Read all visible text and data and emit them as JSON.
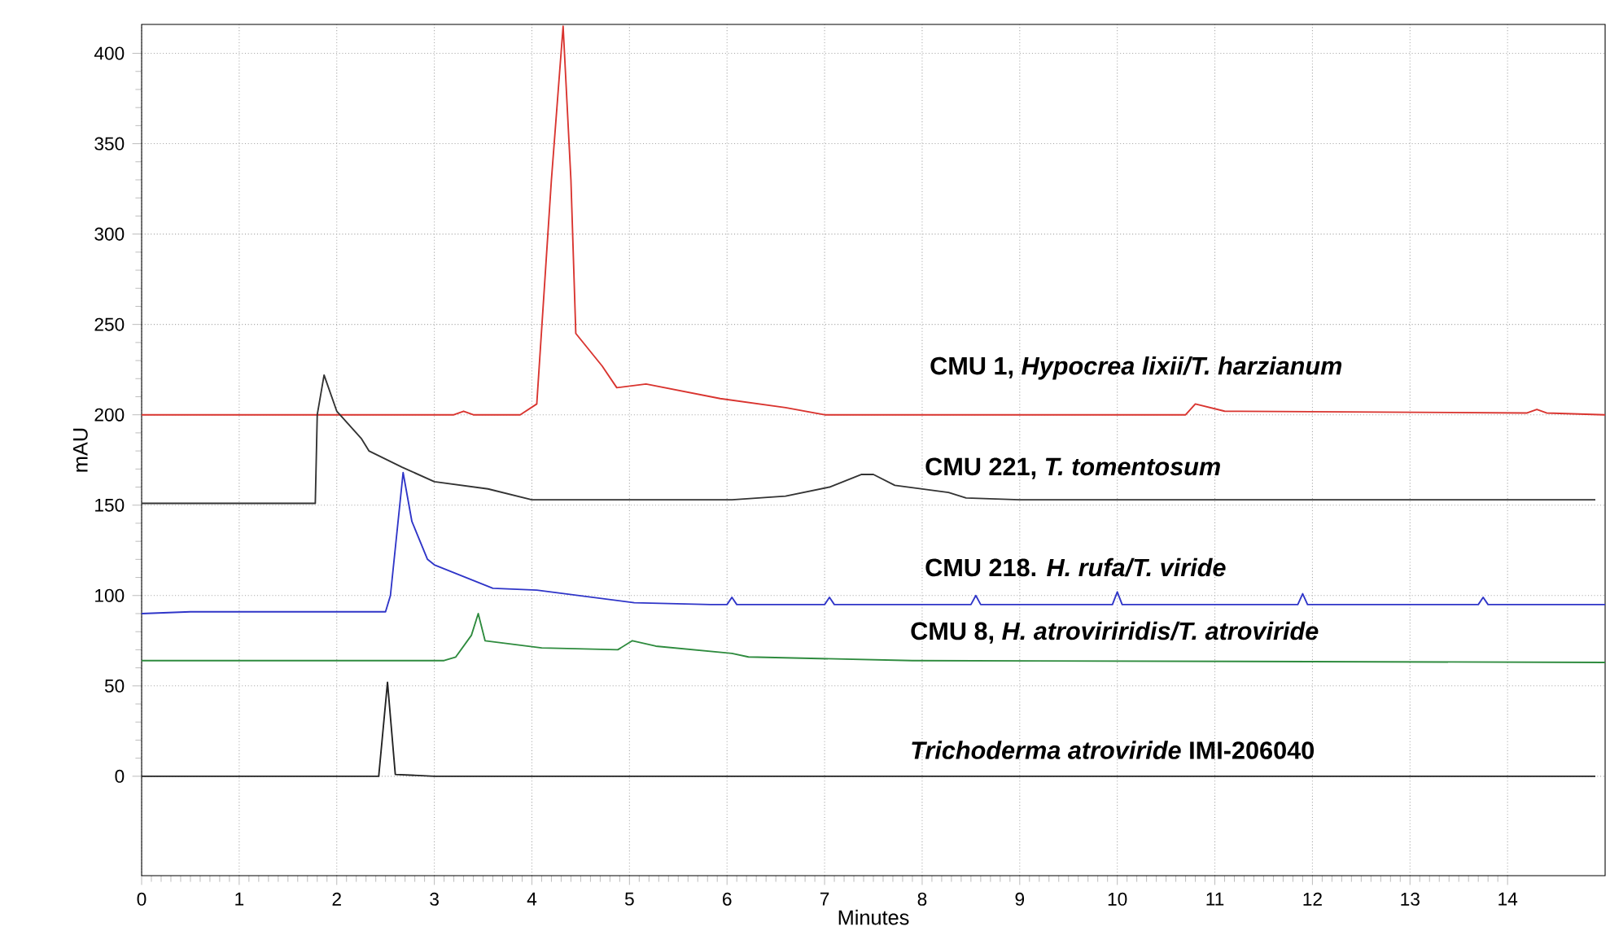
{
  "chart_data": {
    "type": "line",
    "xlabel": "Minutes",
    "ylabel": "mAU",
    "xlim": [
      0,
      15
    ],
    "ylim": [
      -55,
      416
    ],
    "xticks": [
      0,
      1,
      2,
      3,
      4,
      5,
      6,
      7,
      8,
      9,
      10,
      11,
      12,
      13,
      14
    ],
    "yticks": [
      0,
      50,
      100,
      150,
      200,
      250,
      300,
      350,
      400
    ],
    "grid": true,
    "marker": "none",
    "line_style": "solid",
    "series": [
      {
        "name": "CMU 1, *Hypocrea lixii/T.  harzianum*",
        "color": "#d9342f",
        "x": [
          0,
          2,
          3.2,
          3.3,
          3.4,
          3.88,
          4.05,
          4.2,
          4.32,
          4.4,
          4.45,
          4.72,
          4.87,
          5.17,
          5.93,
          6.6,
          7.0,
          8.0,
          10.7,
          10.8,
          10.95,
          11.1,
          14.2,
          14.3,
          14.4,
          15
        ],
        "values": [
          200,
          200,
          200,
          202,
          200,
          200,
          206,
          330,
          415,
          330,
          245,
          227,
          215,
          217,
          209,
          204,
          200,
          200,
          200,
          206,
          204,
          202,
          201,
          203,
          201,
          200
        ]
      },
      {
        "name": "CMU 221, *T. tomentosum*",
        "color": "#333333",
        "x": [
          0,
          1.78,
          1.8,
          1.87,
          2.0,
          2.25,
          2.33,
          2.67,
          3.0,
          3.55,
          4.0,
          6.05,
          6.6,
          7.05,
          7.38,
          7.5,
          7.72,
          8.27,
          8.45,
          9.0,
          14.9
        ],
        "values": [
          151,
          151,
          200,
          222,
          202,
          187,
          180,
          171,
          163,
          159,
          153,
          153,
          155,
          160,
          167,
          167,
          161,
          157,
          154,
          153,
          153
        ]
      },
      {
        "name": "CMU 218. *H. rufa/T. viride*",
        "color": "#2f35c8",
        "x": [
          0,
          0.5,
          2.5,
          2.55,
          2.68,
          2.77,
          2.93,
          3.0,
          3.6,
          4.05,
          5.05,
          5.83,
          6.0,
          6.05,
          6.1,
          7.0,
          7.05,
          7.1,
          8.5,
          8.55,
          8.6,
          9.95,
          10.0,
          10.05,
          11.85,
          11.9,
          11.95,
          13.7,
          13.75,
          13.8,
          15
        ],
        "values": [
          90,
          91,
          91,
          100,
          168,
          141,
          120,
          117,
          104,
          103,
          96,
          95,
          95,
          99,
          95,
          95,
          99,
          95,
          95,
          100,
          95,
          95,
          102,
          95,
          95,
          101,
          95,
          95,
          99,
          95,
          95
        ]
      },
      {
        "name": "CMU 8, *H. atroviriridis/T.  atroviride*",
        "color": "#2e8b3e",
        "x": [
          0,
          3.1,
          3.22,
          3.38,
          3.45,
          3.52,
          4.1,
          4.88,
          5.03,
          5.27,
          6.05,
          6.22,
          7.9,
          15
        ],
        "values": [
          64,
          64,
          66,
          78,
          90,
          75,
          71,
          70,
          75,
          72,
          68,
          66,
          64,
          63
        ]
      },
      {
        "name": "*Trichoderma atroviride* IMI-206040",
        "color": "#222222",
        "x": [
          0,
          2.43,
          2.52,
          2.6,
          3.0,
          14.9
        ],
        "values": [
          0,
          0,
          52,
          1,
          0,
          0
        ]
      }
    ]
  }
}
